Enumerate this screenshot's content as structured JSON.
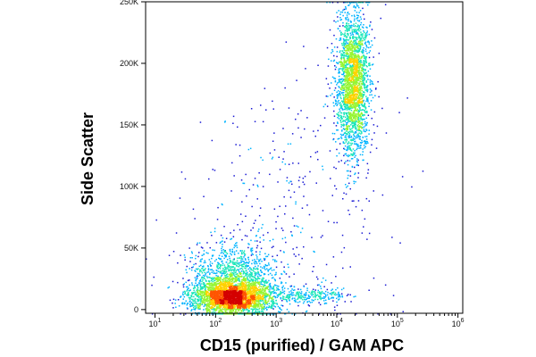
{
  "chart_data": {
    "type": "scatter",
    "plot_style": "flow-cytometry density dot plot (pseudocolor)",
    "title": "",
    "xlabel": "CD15 (purified) / GAM APC",
    "ylabel": "Side Scatter",
    "x_scale": "log",
    "xlim": [
      7,
      1200000
    ],
    "ylim": [
      -3000,
      250000
    ],
    "x_ticks": [
      {
        "value": 10,
        "base": "10",
        "exp": "1"
      },
      {
        "value": 100,
        "base": "10",
        "exp": "2"
      },
      {
        "value": 1000,
        "base": "10",
        "exp": "3"
      },
      {
        "value": 10000,
        "base": "10",
        "exp": "4"
      },
      {
        "value": 100000,
        "base": "10",
        "exp": "5"
      },
      {
        "value": 1000000,
        "base": "10",
        "exp": "6"
      }
    ],
    "y_ticks": [
      {
        "value": 0,
        "label": "0"
      },
      {
        "value": 50000,
        "label": "50K"
      },
      {
        "value": 100000,
        "label": "100K"
      },
      {
        "value": 150000,
        "label": "150K"
      },
      {
        "value": 200000,
        "label": "200K"
      },
      {
        "value": 250000,
        "label": "250K"
      }
    ],
    "populations": [
      {
        "center_x": 180,
        "center_y": 10000,
        "log_sd_x": 0.33,
        "sd_y": 7000,
        "count": 2600
      },
      {
        "center_x": 200,
        "center_y": 25000,
        "log_sd_x": 0.35,
        "sd_y": 14000,
        "count": 1300
      },
      {
        "center_x": 18000,
        "center_y": 185000,
        "log_sd_x": 0.14,
        "sd_y": 30000,
        "count": 2300
      },
      {
        "center_x": 3000,
        "center_y": 12000,
        "log_sd_x": 0.35,
        "sd_y": 3500,
        "count": 260
      },
      {
        "center_x": 1500,
        "center_y": 80000,
        "log_sd_x": 0.8,
        "sd_y": 55000,
        "count": 320
      }
    ],
    "density_colors": [
      "#1a1ad4",
      "#00b4ff",
      "#19e6b8",
      "#96f532",
      "#ffd200",
      "#ff5500",
      "#d40000"
    ],
    "grid": false,
    "legend": "none"
  }
}
